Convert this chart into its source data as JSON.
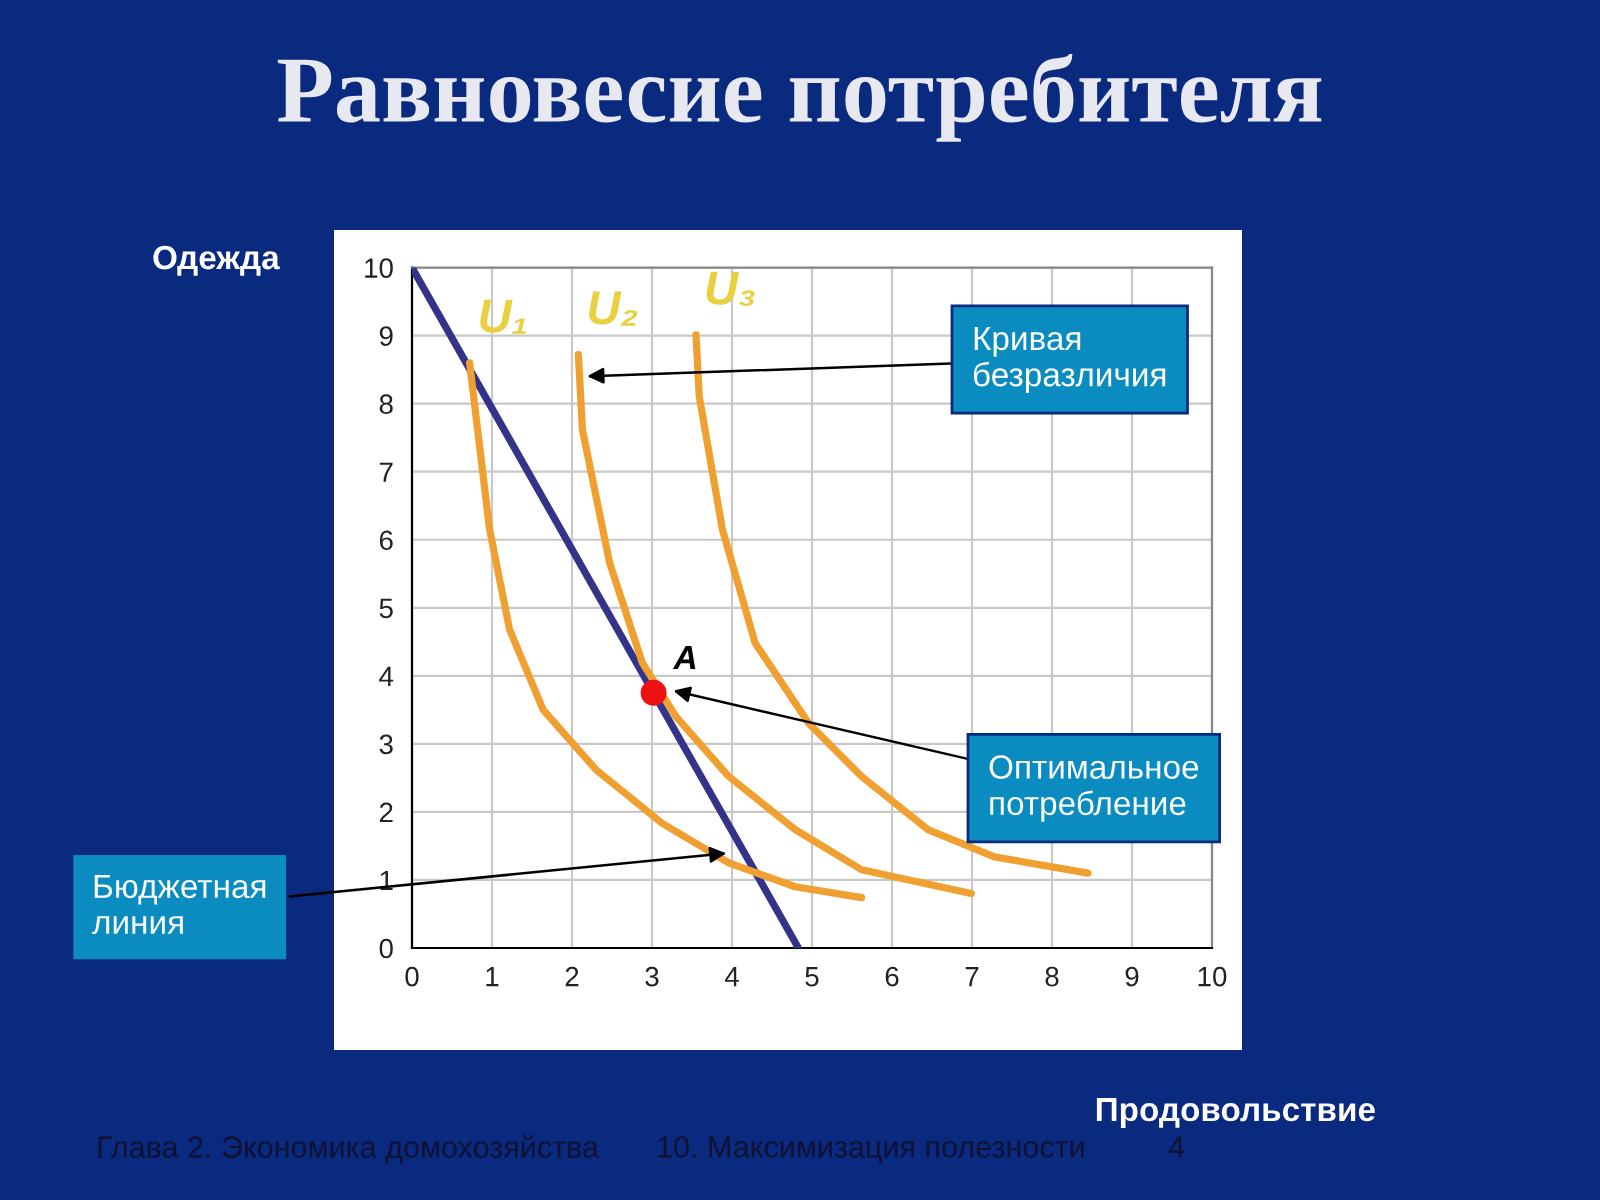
{
  "chart_data": {
    "type": "line",
    "title": "Равновесие потребителя",
    "xlabel": "Продовольствие",
    "ylabel": "Одежда",
    "xlim": [
      0,
      10
    ],
    "ylim": [
      0,
      10
    ],
    "xticks": [
      0,
      1,
      2,
      3,
      4,
      5,
      6,
      7,
      8,
      9,
      10
    ],
    "yticks": [
      0,
      1,
      2,
      3,
      4,
      5,
      6,
      7,
      8,
      9,
      10
    ],
    "grid": true,
    "legend": false,
    "series": [
      {
        "color": "#33338a",
        "x": [
          0,
          4.83
        ],
        "values": [
          10,
          0
        ]
      },
      {
        "name": "U₁",
        "color": "#f0a030",
        "x": [
          0.72,
          0.97,
          1.22,
          1.64,
          2.3,
          3.13,
          3.96,
          4.79,
          5.62
        ],
        "values": [
          8.6,
          6.15,
          4.68,
          3.5,
          2.62,
          1.83,
          1.25,
          0.9,
          0.74
        ]
      },
      {
        "name": "U₂",
        "color": "#f0a030",
        "x": [
          2.08,
          2.13,
          2.47,
          2.88,
          3.3,
          3.96,
          4.79,
          5.62,
          6.99
        ],
        "values": [
          8.72,
          7.62,
          5.66,
          4.19,
          3.4,
          2.52,
          1.74,
          1.15,
          0.8
        ]
      },
      {
        "name": "U₃",
        "color": "#f0a030",
        "x": [
          3.55,
          3.59,
          3.88,
          4.29,
          4.96,
          5.62,
          6.45,
          7.28,
          8.45
        ],
        "values": [
          9.01,
          8.11,
          6.15,
          4.48,
          3.3,
          2.52,
          1.74,
          1.34,
          1.1
        ]
      },
      {
        "name": "A",
        "color": "#ee1111",
        "type": "scatter",
        "marker": "circle",
        "x": [
          3.02
        ],
        "values": [
          3.75
        ]
      }
    ],
    "annotations": [
      {
        "text": "Кривая безразличия",
        "x": 2.12,
        "y": 8.4
      },
      {
        "text": "Оптимальное потребление",
        "x": 3.2,
        "y": 3.8
      },
      {
        "text": "Бюджетная линия",
        "x": 4.0,
        "y": 1.4
      },
      "Глава 2. Экономика домохозяйства",
      "10. Максимизация полезности",
      "4"
    ]
  }
}
